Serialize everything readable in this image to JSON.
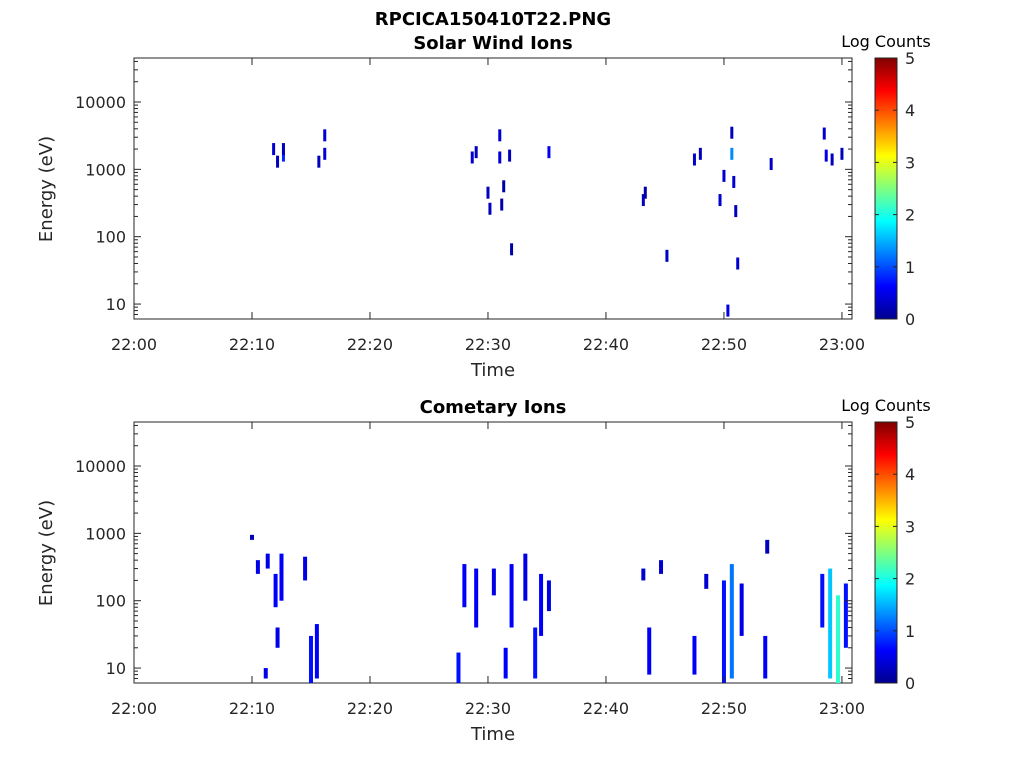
{
  "figure_title": "RPCICA150410T22.PNG",
  "chart_data": [
    {
      "type": "heatmap",
      "title": "Solar Wind Ions",
      "xlabel": "Time",
      "ylabel": "Energy (eV)",
      "x_ticks": [
        "22:00",
        "22:10",
        "22:20",
        "22:30",
        "22:40",
        "22:50",
        "23:00"
      ],
      "y_ticks": [
        "10",
        "100",
        "1000",
        "10000"
      ],
      "y_scale": "log",
      "ylim": [
        6,
        45000
      ],
      "colorbar": {
        "label": "Log Counts",
        "ticks": [
          "0",
          "1",
          "2",
          "3",
          "4",
          "5"
        ],
        "range": [
          0,
          5
        ],
        "colormap": "jet"
      },
      "cells": [
        {
          "t": "22:11:50",
          "e": 2000,
          "v": 0.4
        },
        {
          "t": "22:12:10",
          "e": 1300,
          "v": 0.3
        },
        {
          "t": "22:12:40",
          "e": 1600,
          "v": 0.8
        },
        {
          "t": "22:12:40",
          "e": 2000,
          "v": 0.3
        },
        {
          "t": "22:15:40",
          "e": 1300,
          "v": 0.3
        },
        {
          "t": "22:16:10",
          "e": 1700,
          "v": 0.4
        },
        {
          "t": "22:16:10",
          "e": 3200,
          "v": 0.4
        },
        {
          "t": "22:28:40",
          "e": 1500,
          "v": 0.4
        },
        {
          "t": "22:29:00",
          "e": 1800,
          "v": 0.3
        },
        {
          "t": "22:30:00",
          "e": 450,
          "v": 0.3
        },
        {
          "t": "22:30:10",
          "e": 260,
          "v": 0.3
        },
        {
          "t": "22:31:00",
          "e": 3200,
          "v": 0.4
        },
        {
          "t": "22:31:00",
          "e": 1500,
          "v": 0.4
        },
        {
          "t": "22:31:10",
          "e": 300,
          "v": 0.2
        },
        {
          "t": "22:31:20",
          "e": 560,
          "v": 0.2
        },
        {
          "t": "22:31:50",
          "e": 1600,
          "v": 0.3
        },
        {
          "t": "22:32:00",
          "e": 65,
          "v": 0.2
        },
        {
          "t": "22:35:10",
          "e": 1800,
          "v": 0.6
        },
        {
          "t": "22:43:10",
          "e": 350,
          "v": 0.3
        },
        {
          "t": "22:43:20",
          "e": 450,
          "v": 0.2
        },
        {
          "t": "22:45:10",
          "e": 52,
          "v": 0.3
        },
        {
          "t": "22:47:30",
          "e": 1400,
          "v": 0.4
        },
        {
          "t": "22:48:00",
          "e": 1700,
          "v": 0.3
        },
        {
          "t": "22:49:40",
          "e": 350,
          "v": 0.4
        },
        {
          "t": "22:50:00",
          "e": 800,
          "v": 0.4
        },
        {
          "t": "22:50:20",
          "e": 8,
          "v": 0.5
        },
        {
          "t": "22:50:40",
          "e": 1700,
          "v": 1.3
        },
        {
          "t": "22:50:40",
          "e": 3500,
          "v": 0.3
        },
        {
          "t": "22:50:50",
          "e": 650,
          "v": 0.4
        },
        {
          "t": "22:51:00",
          "e": 240,
          "v": 0.3
        },
        {
          "t": "22:51:10",
          "e": 40,
          "v": 0.4
        },
        {
          "t": "22:54:00",
          "e": 1200,
          "v": 0.3
        },
        {
          "t": "22:58:30",
          "e": 3400,
          "v": 0.4
        },
        {
          "t": "22:58:40",
          "e": 1600,
          "v": 0.5
        },
        {
          "t": "22:59:10",
          "e": 1400,
          "v": 0.3
        },
        {
          "t": "23:00:00",
          "e": 1700,
          "v": 0.3
        }
      ]
    },
    {
      "type": "heatmap",
      "title": "Cometary Ions",
      "xlabel": "Time",
      "ylabel": "Energy (eV)",
      "x_ticks": [
        "22:00",
        "22:10",
        "22:20",
        "22:30",
        "22:40",
        "22:50",
        "23:00"
      ],
      "y_ticks": [
        "10",
        "100",
        "1000",
        "10000"
      ],
      "y_scale": "log",
      "ylim": [
        6,
        45000
      ],
      "colorbar": {
        "label": "Log Counts",
        "ticks": [
          "0",
          "1",
          "2",
          "3",
          "4",
          "5"
        ],
        "range": [
          0,
          5
        ],
        "colormap": "jet"
      },
      "columns": [
        {
          "t": "22:10:00",
          "emin": 800,
          "emax": 950,
          "v": 0.3
        },
        {
          "t": "22:10:30",
          "emin": 250,
          "emax": 400,
          "v": 0.5
        },
        {
          "t": "22:11:10",
          "emin": 7,
          "emax": 10,
          "v": 0.5
        },
        {
          "t": "22:11:20",
          "emin": 300,
          "emax": 500,
          "v": 0.5
        },
        {
          "t": "22:12:00",
          "emin": 80,
          "emax": 250,
          "v": 0.6
        },
        {
          "t": "22:12:10",
          "emin": 20,
          "emax": 40,
          "v": 0.5
        },
        {
          "t": "22:12:30",
          "emin": 100,
          "emax": 500,
          "v": 0.6
        },
        {
          "t": "22:14:30",
          "emin": 200,
          "emax": 450,
          "v": 0.5
        },
        {
          "t": "22:15:00",
          "emin": 6,
          "emax": 30,
          "v": 0.7
        },
        {
          "t": "22:15:30",
          "emin": 7,
          "emax": 45,
          "v": 0.6
        },
        {
          "t": "22:27:30",
          "emin": 6,
          "emax": 17,
          "v": 0.7
        },
        {
          "t": "22:28:00",
          "emin": 80,
          "emax": 350,
          "v": 0.6
        },
        {
          "t": "22:29:00",
          "emin": 40,
          "emax": 300,
          "v": 0.6
        },
        {
          "t": "22:30:30",
          "emin": 120,
          "emax": 300,
          "v": 0.5
        },
        {
          "t": "22:31:30",
          "emin": 7,
          "emax": 20,
          "v": 0.6
        },
        {
          "t": "22:32:00",
          "emin": 40,
          "emax": 350,
          "v": 0.6
        },
        {
          "t": "22:33:10",
          "emin": 100,
          "emax": 500,
          "v": 0.5
        },
        {
          "t": "22:34:00",
          "emin": 7,
          "emax": 40,
          "v": 0.7
        },
        {
          "t": "22:34:30",
          "emin": 30,
          "emax": 250,
          "v": 0.6
        },
        {
          "t": "22:35:10",
          "emin": 70,
          "emax": 200,
          "v": 0.5
        },
        {
          "t": "22:43:10",
          "emin": 200,
          "emax": 300,
          "v": 0.4
        },
        {
          "t": "22:43:40",
          "emin": 8,
          "emax": 40,
          "v": 0.6
        },
        {
          "t": "22:44:40",
          "emin": 250,
          "emax": 400,
          "v": 0.4
        },
        {
          "t": "22:47:30",
          "emin": 8,
          "emax": 30,
          "v": 0.6
        },
        {
          "t": "22:48:30",
          "emin": 150,
          "emax": 250,
          "v": 0.4
        },
        {
          "t": "22:50:00",
          "emin": 6,
          "emax": 200,
          "v": 0.7
        },
        {
          "t": "22:50:40",
          "emin": 7,
          "emax": 350,
          "v": 1.2
        },
        {
          "t": "22:51:30",
          "emin": 30,
          "emax": 180,
          "v": 0.5
        },
        {
          "t": "22:53:30",
          "emin": 7,
          "emax": 30,
          "v": 0.6
        },
        {
          "t": "22:53:40",
          "emin": 500,
          "emax": 800,
          "v": 0.3
        },
        {
          "t": "22:58:20",
          "emin": 40,
          "emax": 250,
          "v": 0.7
        },
        {
          "t": "22:59:00",
          "emin": 7,
          "emax": 300,
          "v": 1.6
        },
        {
          "t": "22:59:40",
          "emin": 6,
          "emax": 120,
          "v": 2.1
        },
        {
          "t": "23:00:20",
          "emin": 20,
          "emax": 180,
          "v": 0.7
        }
      ]
    }
  ]
}
